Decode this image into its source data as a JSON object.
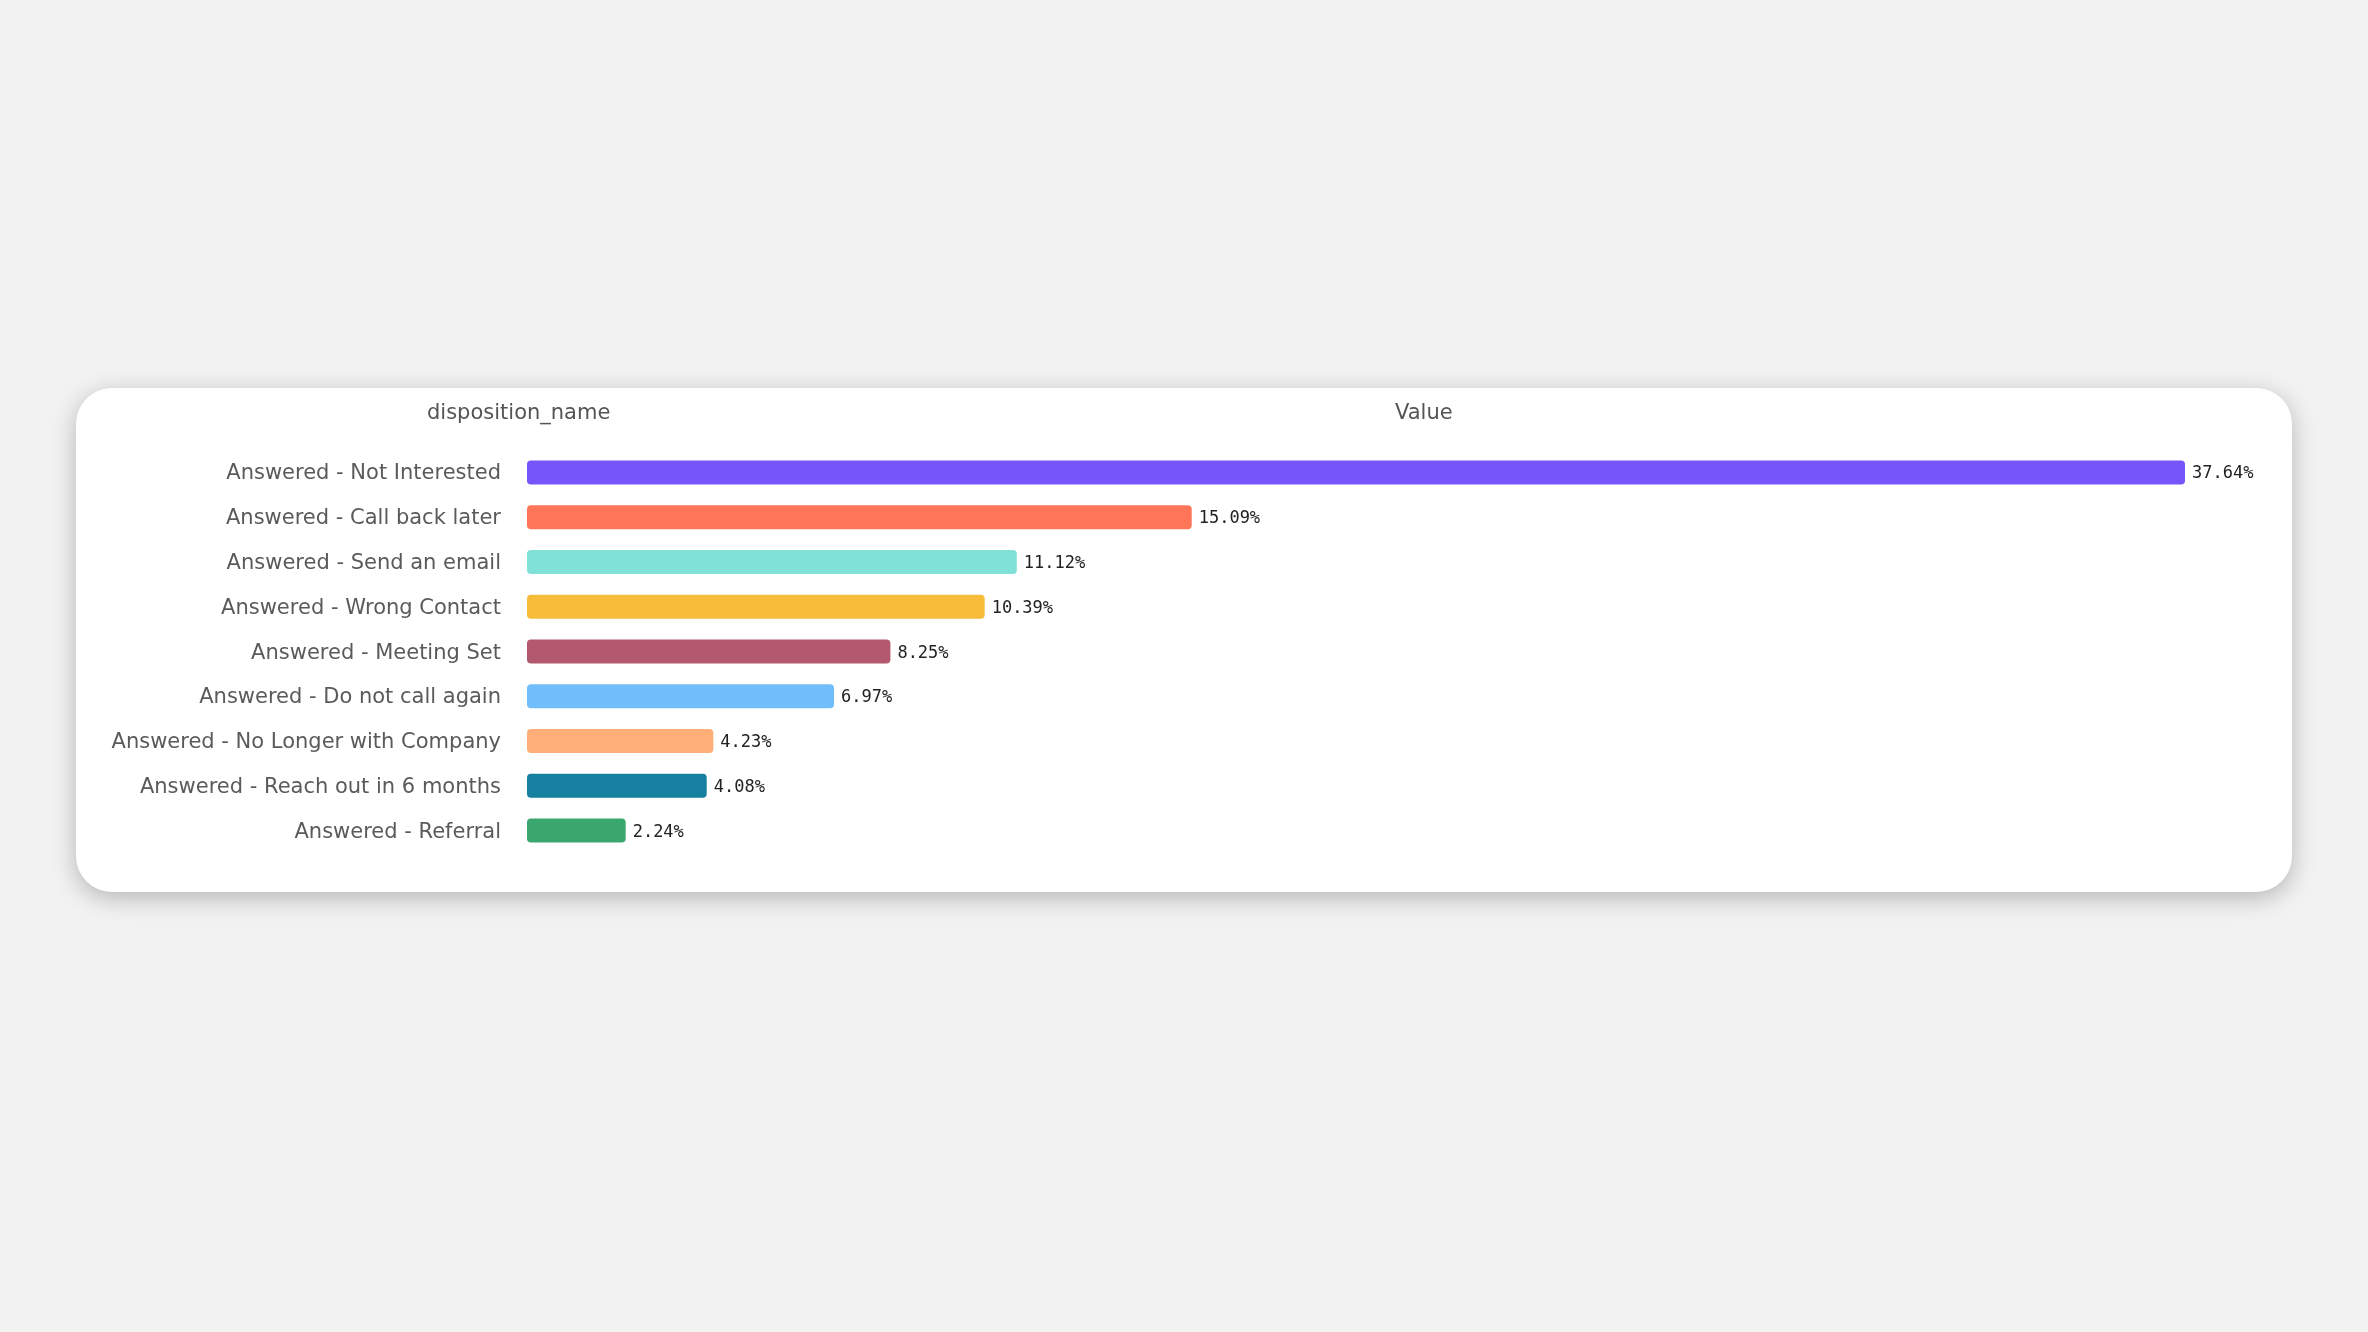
{
  "chart_data": {
    "type": "bar",
    "orientation": "horizontal",
    "ylabel": "disposition_name",
    "xlabel": "Value",
    "categories": [
      "Answered - Not Interested",
      "Answered - Call back later",
      "Answered - Send an email",
      "Answered - Wrong Contact",
      "Answered - Meeting Set",
      "Answered - Do not call again",
      "Answered - No Longer with Company",
      "Answered - Reach out in 6 months",
      "Answered - Referral"
    ],
    "values": [
      37.64,
      15.09,
      11.12,
      10.39,
      8.25,
      6.97,
      4.23,
      4.08,
      2.24
    ],
    "value_labels": [
      "37.64%",
      "15.09%",
      "11.12%",
      "10.39%",
      "8.25%",
      "6.97%",
      "4.23%",
      "4.08%",
      "2.24%"
    ],
    "colors": [
      "#7655fa",
      "#ff7557",
      "#80e1d9",
      "#f8bc3b",
      "#b2596e",
      "#72befa",
      "#ffae77",
      "#15809f",
      "#3aa86e"
    ]
  }
}
